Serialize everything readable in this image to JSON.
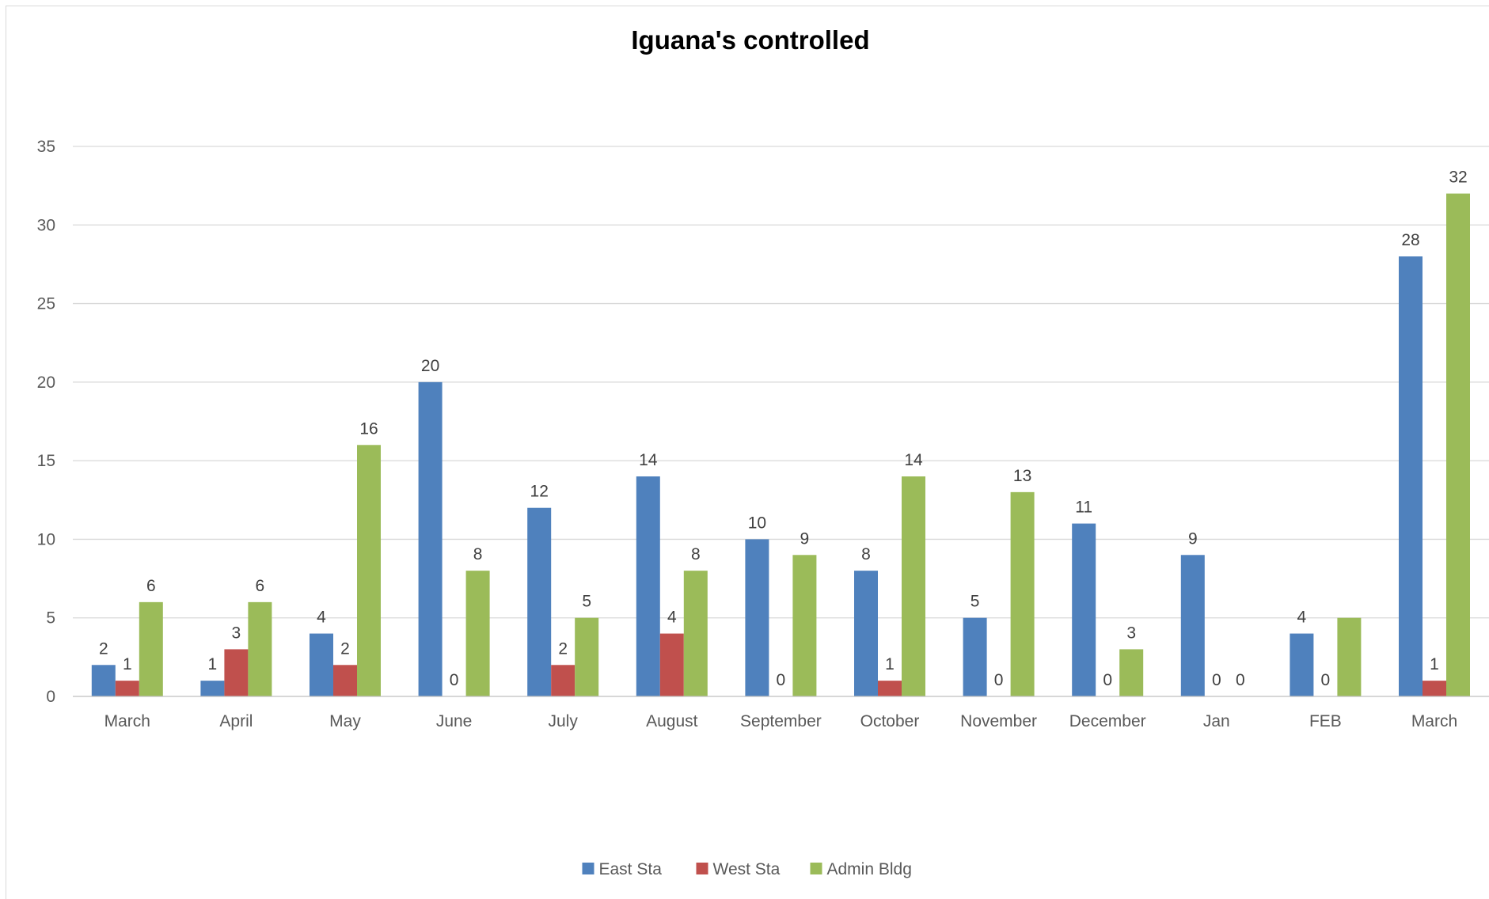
{
  "chart_data": {
    "type": "bar",
    "title": "Iguana's controlled",
    "xlabel": "",
    "ylabel": "",
    "ylim": [
      0,
      35
    ],
    "yticks": [
      0,
      5,
      10,
      15,
      20,
      25,
      30,
      35
    ],
    "grid": true,
    "legend_position": "bottom",
    "categories": [
      "March",
      "April",
      "May",
      "June",
      "July",
      "August",
      "September",
      "October",
      "November",
      "December",
      "Jan",
      "FEB",
      "March"
    ],
    "series": [
      {
        "name": "East Sta",
        "color": "#4f81bd",
        "values": [
          2,
          1,
          4,
          20,
          12,
          14,
          10,
          8,
          5,
          11,
          9,
          4,
          28
        ]
      },
      {
        "name": "West Sta",
        "color": "#c0504d",
        "values": [
          1,
          3,
          2,
          0,
          2,
          4,
          0,
          1,
          0,
          0,
          0,
          0,
          1
        ]
      },
      {
        "name": "Admin Bldg",
        "color": "#9bbb59",
        "values": [
          6,
          6,
          16,
          8,
          5,
          8,
          9,
          14,
          13,
          3,
          0,
          5,
          32
        ]
      }
    ],
    "data_labels_shown": [
      [
        true,
        true,
        true,
        true,
        true,
        true,
        true,
        true,
        true,
        true,
        true,
        true,
        true
      ],
      [
        true,
        true,
        true,
        true,
        true,
        true,
        true,
        true,
        true,
        true,
        true,
        true,
        true
      ],
      [
        true,
        true,
        true,
        true,
        true,
        true,
        true,
        true,
        true,
        true,
        true,
        false,
        true
      ]
    ]
  }
}
